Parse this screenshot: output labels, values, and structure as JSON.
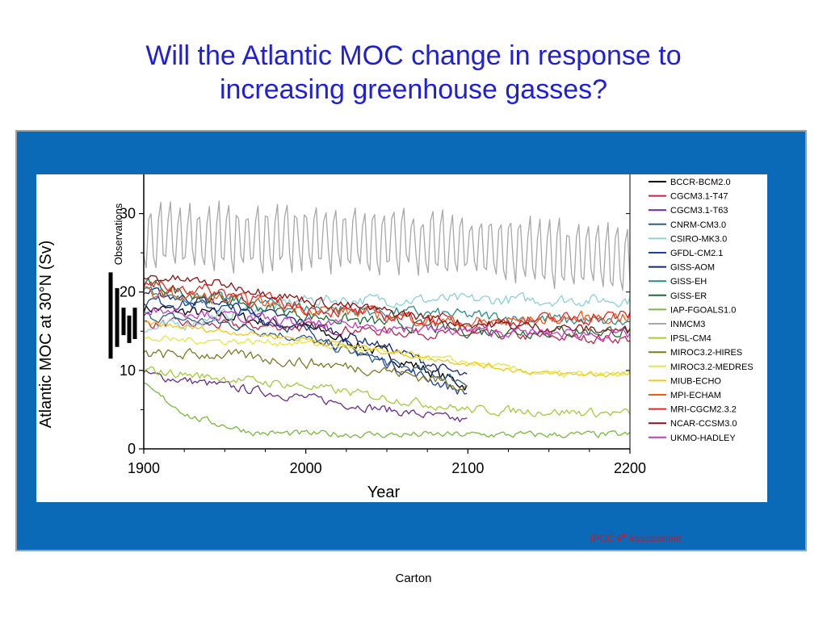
{
  "slide": {
    "title_line1": "Will the Atlantic MOC change in response to",
    "title_line2": "increasing greenhouse gasses?",
    "credit_text": "IPCC 4",
    "credit_sup": "th",
    "credit_rest": " Assessment",
    "footer": "Carton",
    "panel_color": "#0a6ab8",
    "title_color": "#1f1fd6",
    "credit_color": "#d4141e"
  },
  "chart_data": {
    "type": "line",
    "xlabel": "Year",
    "ylabel": "Atlantic MOC at  30°N (Sv)",
    "observations_label": "Observations",
    "xlim": [
      1895,
      2205
    ],
    "ylim": [
      0,
      35
    ],
    "x_ticks": [
      1900,
      2000,
      2100,
      2200
    ],
    "y_ticks": [
      0,
      10,
      20,
      30
    ],
    "grid": false,
    "legend_position": "right",
    "observations": [
      {
        "low": 11.5,
        "high": 22.5
      },
      {
        "low": 13.0,
        "high": 20.5
      },
      {
        "low": 14.5,
        "high": 18.0
      },
      {
        "low": 13.5,
        "high": 17.0
      },
      {
        "low": 14.0,
        "high": 18.0
      }
    ],
    "series": [
      {
        "name": "BCCR-BCM2.0",
        "color": "#000000",
        "end": 2100,
        "anchors": [
          [
            1900,
            18
          ],
          [
            1950,
            17
          ],
          [
            2000,
            15.5
          ],
          [
            2050,
            12
          ],
          [
            2100,
            8
          ]
        ],
        "amp": 1.2,
        "period": 0
      },
      {
        "name": "CGCM3.1-T47",
        "color": "#c0254a",
        "end": 2200,
        "anchors": [
          [
            1900,
            16
          ],
          [
            2000,
            15.5
          ],
          [
            2100,
            14.5
          ],
          [
            2200,
            14
          ]
        ],
        "amp": 1.0,
        "period": 0
      },
      {
        "name": "CGCM3.1-T63",
        "color": "#6a2a8c",
        "end": 2100,
        "anchors": [
          [
            1900,
            9.5
          ],
          [
            1950,
            8
          ],
          [
            2000,
            6.5
          ],
          [
            2050,
            5
          ],
          [
            2100,
            3.5
          ]
        ],
        "amp": 0.9,
        "period": 0
      },
      {
        "name": "CNRM-CM3.0",
        "color": "#2a5f8a",
        "end": 2100,
        "anchors": [
          [
            1900,
            17
          ],
          [
            1950,
            16
          ],
          [
            2000,
            14
          ],
          [
            2050,
            11
          ],
          [
            2100,
            8.5
          ]
        ],
        "amp": 1.0,
        "period": 0
      },
      {
        "name": "CSIRO-MK3.0",
        "color": "#8ad0d8",
        "end": 2200,
        "anchors": [
          [
            1900,
            15
          ],
          [
            1950,
            17
          ],
          [
            2000,
            19
          ],
          [
            2100,
            19
          ],
          [
            2200,
            19
          ]
        ],
        "amp": 1.2,
        "period": 0
      },
      {
        "name": "GFDL-CM2.1",
        "color": "#1f3fa0",
        "end": 2100,
        "anchors": [
          [
            1900,
            19
          ],
          [
            1950,
            18
          ],
          [
            2000,
            15
          ],
          [
            2050,
            11
          ],
          [
            2100,
            7
          ]
        ],
        "amp": 1.1,
        "period": 0
      },
      {
        "name": "GISS-AOM",
        "color": "#12267a",
        "end": 2100,
        "anchors": [
          [
            1900,
            20
          ],
          [
            1950,
            18.5
          ],
          [
            2000,
            16
          ],
          [
            2050,
            13
          ],
          [
            2100,
            9
          ]
        ],
        "amp": 1.0,
        "period": 0
      },
      {
        "name": "GISS-EH",
        "color": "#2a8a8a",
        "end": 2200,
        "anchors": [
          [
            1900,
            20
          ],
          [
            1950,
            19
          ],
          [
            2000,
            18
          ],
          [
            2100,
            17
          ],
          [
            2200,
            16
          ]
        ],
        "amp": 1.2,
        "period": 0
      },
      {
        "name": "GISS-ER",
        "color": "#1f6a3a",
        "end": 2200,
        "anchors": [
          [
            1900,
            21
          ],
          [
            1950,
            19
          ],
          [
            2000,
            17
          ],
          [
            2100,
            15
          ],
          [
            2200,
            15
          ]
        ],
        "amp": 1.2,
        "period": 0
      },
      {
        "name": "IAP-FGOALS1.0",
        "color": "#7ab840",
        "end": 2200,
        "anchors": [
          [
            1900,
            8
          ],
          [
            1930,
            4
          ],
          [
            1970,
            2
          ],
          [
            2050,
            1.8
          ],
          [
            2200,
            1.8
          ]
        ],
        "amp": 0.7,
        "period": 0
      },
      {
        "name": "INMCM3",
        "color": "#a8a8a8",
        "end": 2200,
        "anchors": [
          [
            1900,
            27
          ],
          [
            2000,
            27
          ],
          [
            2100,
            26
          ],
          [
            2200,
            24
          ]
        ],
        "amp": 5.5,
        "period": 6
      },
      {
        "name": "IPSL-CM4",
        "color": "#a2cc3a",
        "end": 2200,
        "anchors": [
          [
            1900,
            10
          ],
          [
            1950,
            9
          ],
          [
            2000,
            8
          ],
          [
            2050,
            6.5
          ],
          [
            2100,
            5
          ],
          [
            2200,
            4.5
          ]
        ],
        "amp": 0.9,
        "period": 0
      },
      {
        "name": "MIROC3.2-HIRES",
        "color": "#7d7a26",
        "end": 2100,
        "anchors": [
          [
            1900,
            12
          ],
          [
            1950,
            12
          ],
          [
            2000,
            11
          ],
          [
            2050,
            10
          ],
          [
            2100,
            8
          ]
        ],
        "amp": 1.1,
        "period": 0
      },
      {
        "name": "MIROC3.2-MEDRES",
        "color": "#e6e645",
        "end": 2200,
        "anchors": [
          [
            1900,
            14
          ],
          [
            2000,
            13.5
          ],
          [
            2100,
            11
          ],
          [
            2150,
            9.5
          ],
          [
            2200,
            9.5
          ]
        ],
        "amp": 0.7,
        "period": 0
      },
      {
        "name": "MIUB-ECHO",
        "color": "#f0c81e",
        "end": 2200,
        "anchors": [
          [
            1900,
            16
          ],
          [
            2000,
            14
          ],
          [
            2080,
            11.5
          ],
          [
            2150,
            9.5
          ],
          [
            2200,
            9.5
          ]
        ],
        "amp": 0.6,
        "period": 0
      },
      {
        "name": "MPI-ECHAM",
        "color": "#f05a1e",
        "end": 2200,
        "anchors": [
          [
            1900,
            20
          ],
          [
            2000,
            18
          ],
          [
            2100,
            16
          ],
          [
            2200,
            17
          ]
        ],
        "amp": 1.3,
        "period": 0
      },
      {
        "name": "MRI-CGCM2.3.2",
        "color": "#e02828",
        "end": 2200,
        "anchors": [
          [
            1900,
            21
          ],
          [
            1950,
            20
          ],
          [
            2000,
            18
          ],
          [
            2100,
            16
          ],
          [
            2200,
            17
          ]
        ],
        "amp": 1.3,
        "period": 0
      },
      {
        "name": "NCAR-CCSM3.0",
        "color": "#8a1414",
        "end": 2200,
        "anchors": [
          [
            1900,
            22
          ],
          [
            1950,
            21
          ],
          [
            2000,
            19
          ],
          [
            2100,
            16
          ],
          [
            2200,
            15
          ]
        ],
        "amp": 1.0,
        "period": 0
      },
      {
        "name": "UKMO-HADLEY",
        "color": "#c23cc2",
        "end": 2200,
        "anchors": [
          [
            1900,
            18
          ],
          [
            2000,
            16
          ],
          [
            2100,
            15
          ],
          [
            2200,
            14.5
          ]
        ],
        "amp": 1.0,
        "period": 0
      }
    ]
  }
}
